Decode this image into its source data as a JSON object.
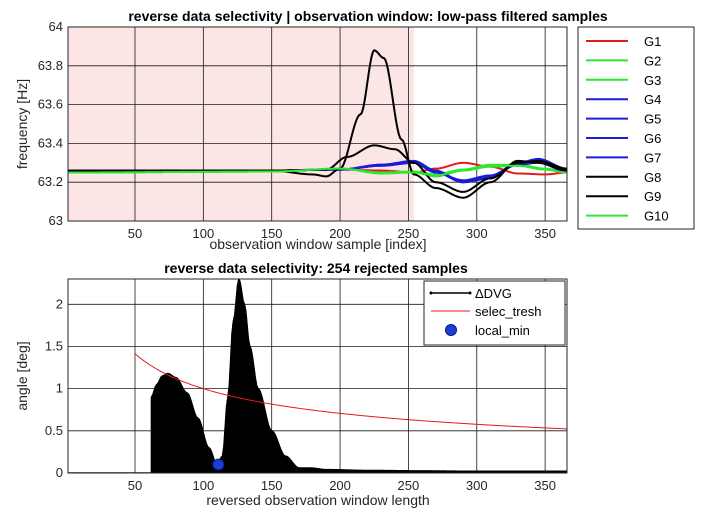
{
  "chart_data": [
    {
      "type": "line",
      "title": "reverse data selectivity | observation window: low-pass filtered samples",
      "xlabel": "observation window sample [index]",
      "ylabel": "frequency [Hz]",
      "xlim": [
        1,
        366
      ],
      "ylim": [
        63,
        64
      ],
      "xticks": [
        50,
        100,
        150,
        200,
        250,
        300,
        350
      ],
      "yticks": [
        63,
        63.2,
        63.4,
        63.6,
        63.8,
        64
      ],
      "ytick_labels": [
        "63",
        "63.2",
        "63.4",
        "63.6",
        "63.8",
        "64"
      ],
      "grid": true,
      "shaded_region": {
        "x": [
          1,
          254
        ],
        "color": "#fbe5e5"
      },
      "legend_position": "outside-right",
      "series": [
        {
          "name": "G1",
          "color": "#e41a1c",
          "points": [
            [
              1,
              63.26
            ],
            [
              150,
              63.26
            ],
            [
              200,
              63.265
            ],
            [
              230,
              63.26
            ],
            [
              254,
              63.25
            ],
            [
              270,
              63.27
            ],
            [
              290,
              63.3
            ],
            [
              310,
              63.28
            ],
            [
              330,
              63.245
            ],
            [
              350,
              63.24
            ],
            [
              366,
              63.25
            ]
          ]
        },
        {
          "name": "G2",
          "color": "#2ee82e",
          "points": [
            [
              1,
              63.25
            ],
            [
              150,
              63.255
            ],
            [
              200,
              63.27
            ],
            [
              230,
              63.25
            ],
            [
              254,
              63.255
            ],
            [
              270,
              63.24
            ],
            [
              290,
              63.265
            ],
            [
              310,
              63.29
            ],
            [
              330,
              63.29
            ],
            [
              350,
              63.27
            ],
            [
              366,
              63.25
            ]
          ]
        },
        {
          "name": "G3",
          "color": "#2ee82e",
          "points": [
            [
              1,
              63.25
            ],
            [
              150,
              63.255
            ],
            [
              200,
              63.27
            ],
            [
              230,
              63.245
            ],
            [
              254,
              63.25
            ],
            [
              270,
              63.23
            ],
            [
              290,
              63.26
            ],
            [
              310,
              63.28
            ],
            [
              330,
              63.285
            ],
            [
              350,
              63.265
            ],
            [
              366,
              63.25
            ]
          ]
        },
        {
          "name": "G4",
          "color": "#1c1cd6",
          "points": [
            [
              1,
              63.26
            ],
            [
              150,
              63.26
            ],
            [
              200,
              63.265
            ],
            [
              230,
              63.29
            ],
            [
              254,
              63.31
            ],
            [
              270,
              63.26
            ],
            [
              290,
              63.2
            ],
            [
              310,
              63.22
            ],
            [
              330,
              63.3
            ],
            [
              345,
              63.32
            ],
            [
              366,
              63.27
            ]
          ]
        },
        {
          "name": "G5",
          "color": "#1c1cd6",
          "points": [
            [
              1,
              63.26
            ],
            [
              150,
              63.26
            ],
            [
              200,
              63.265
            ],
            [
              230,
              63.29
            ],
            [
              254,
              63.305
            ],
            [
              270,
              63.255
            ],
            [
              290,
              63.2
            ],
            [
              310,
              63.23
            ],
            [
              330,
              63.3
            ],
            [
              345,
              63.31
            ],
            [
              366,
              63.26
            ]
          ]
        },
        {
          "name": "G6",
          "color": "#1c1cd6",
          "points": [
            [
              1,
              63.26
            ],
            [
              150,
              63.26
            ],
            [
              200,
              63.265
            ],
            [
              230,
              63.285
            ],
            [
              254,
              63.3
            ],
            [
              270,
              63.25
            ],
            [
              290,
              63.21
            ],
            [
              310,
              63.235
            ],
            [
              330,
              63.295
            ],
            [
              345,
              63.305
            ],
            [
              366,
              63.26
            ]
          ]
        },
        {
          "name": "G7",
          "color": "#1c1cd6",
          "points": [
            [
              1,
              63.26
            ],
            [
              150,
              63.26
            ],
            [
              200,
              63.265
            ],
            [
              230,
              63.285
            ],
            [
              254,
              63.3
            ],
            [
              270,
              63.25
            ],
            [
              290,
              63.2
            ],
            [
              310,
              63.23
            ],
            [
              330,
              63.29
            ],
            [
              345,
              63.3
            ],
            [
              366,
              63.255
            ]
          ]
        },
        {
          "name": "G8",
          "color": "#000000",
          "points": [
            [
              1,
              63.26
            ],
            [
              150,
              63.26
            ],
            [
              180,
              63.24
            ],
            [
              190,
              63.23
            ],
            [
              200,
              63.27
            ],
            [
              215,
              63.55
            ],
            [
              225,
              63.88
            ],
            [
              232,
              63.84
            ],
            [
              245,
              63.42
            ],
            [
              254,
              63.24
            ],
            [
              270,
              63.17
            ],
            [
              290,
              63.12
            ],
            [
              310,
              63.2
            ],
            [
              330,
              63.31
            ],
            [
              345,
              63.3
            ],
            [
              366,
              63.26
            ]
          ]
        },
        {
          "name": "G9",
          "color": "#000000",
          "points": [
            [
              1,
              63.26
            ],
            [
              150,
              63.26
            ],
            [
              190,
              63.265
            ],
            [
              205,
              63.33
            ],
            [
              225,
              63.39
            ],
            [
              240,
              63.37
            ],
            [
              254,
              63.3
            ],
            [
              270,
              63.2
            ],
            [
              290,
              63.15
            ],
            [
              310,
              63.22
            ],
            [
              330,
              63.3
            ],
            [
              345,
              63.31
            ],
            [
              366,
              63.27
            ]
          ]
        },
        {
          "name": "G10",
          "color": "#2ee82e",
          "points": [
            [
              1,
              63.25
            ],
            [
              150,
              63.255
            ],
            [
              200,
              63.27
            ],
            [
              230,
              63.25
            ],
            [
              254,
              63.25
            ],
            [
              270,
              63.235
            ],
            [
              290,
              63.26
            ],
            [
              310,
              63.285
            ],
            [
              330,
              63.285
            ],
            [
              350,
              63.265
            ],
            [
              366,
              63.25
            ]
          ]
        }
      ]
    },
    {
      "type": "line",
      "title": "reverse data selectivity: 254 rejected samples",
      "xlabel": "reversed observation window length",
      "ylabel": "angle [deg]",
      "xlim": [
        1,
        366
      ],
      "ylim": [
        0,
        2.3
      ],
      "xticks": [
        50,
        100,
        150,
        200,
        250,
        300,
        350
      ],
      "yticks": [
        0,
        0.5,
        1,
        1.5,
        2
      ],
      "ytick_labels": [
        "0",
        "0.5",
        "1",
        "1.5",
        "2"
      ],
      "grid": true,
      "legend_position": "top-right",
      "series": [
        {
          "name": "ΔDVG",
          "color": "#000000",
          "style": "oscillating-stems",
          "envelope": [
            [
              62,
              0.9
            ],
            [
              66,
              1.05
            ],
            [
              70,
              1.15
            ],
            [
              74,
              1.18
            ],
            [
              80,
              1.13
            ],
            [
              88,
              0.95
            ],
            [
              96,
              0.65
            ],
            [
              104,
              0.3
            ],
            [
              110,
              0.1
            ],
            [
              114,
              0.2
            ],
            [
              118,
              0.9
            ],
            [
              122,
              1.8
            ],
            [
              126,
              2.3
            ],
            [
              130,
              2.0
            ],
            [
              134,
              1.5
            ],
            [
              140,
              1.0
            ],
            [
              150,
              0.5
            ],
            [
              160,
              0.2
            ],
            [
              170,
              0.06
            ],
            [
              178,
              0.06
            ],
            [
              190,
              0.04
            ],
            [
              220,
              0.03
            ],
            [
              260,
              0.025
            ],
            [
              300,
              0.02
            ],
            [
              340,
              0.02
            ],
            [
              366,
              0.02
            ]
          ]
        },
        {
          "name": "selec_tresh",
          "color": "#e41a1c",
          "formula": "k/sqrt(x)",
          "k": 10.0
        },
        {
          "name": "local_min",
          "color": "#1a3fd9",
          "marker": "circle",
          "points": [
            [
              111,
              0.1
            ]
          ]
        }
      ]
    }
  ]
}
